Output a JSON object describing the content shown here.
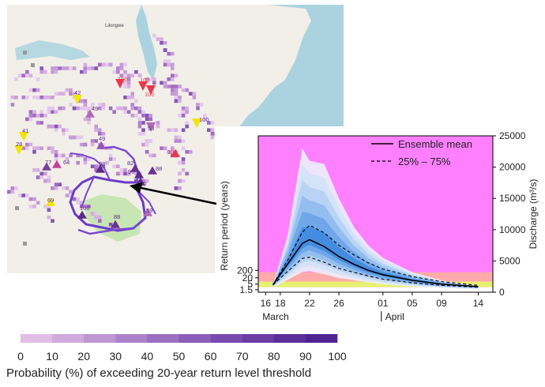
{
  "map": {
    "place_labels": [
      "Lilongwe"
    ],
    "markers": [
      {
        "value": "100",
        "shape": "triangle-down",
        "color": "#e8384d",
        "level": 100
      },
      {
        "value": "100",
        "shape": "triangle-down",
        "color": "#e8384d",
        "level": 100
      },
      {
        "value": "100",
        "shape": "triangle-down",
        "color": "#e8384d",
        "level": 100
      },
      {
        "value": "42",
        "shape": "triangle-down",
        "color": "#f2e600",
        "level": 42
      },
      {
        "value": "49",
        "shape": "triangle-up",
        "color": "#b06ab5",
        "level": 49
      },
      {
        "value": "53",
        "shape": "triangle-down",
        "color": "#b06ab5",
        "level": 53
      },
      {
        "value": "100",
        "shape": "triangle-down",
        "color": "#f2e600",
        "level": 100
      },
      {
        "value": "41",
        "shape": "triangle-down",
        "color": "#f2e600",
        "level": 41
      },
      {
        "value": "28",
        "shape": "triangle-down",
        "color": "#f2e600",
        "level": 28
      },
      {
        "value": "49",
        "shape": "triangle-up",
        "color": "#9a55b0",
        "level": 49
      },
      {
        "value": "100",
        "shape": "triangle-up",
        "color": "#e8384d",
        "level": 100
      },
      {
        "value": "64",
        "shape": "triangle-up",
        "color": "#c2409b",
        "level": 64
      },
      {
        "value": "77",
        "shape": "triangle-up",
        "color": "#7a3fa0",
        "level": 77
      },
      {
        "value": "98",
        "shape": "triangle-up",
        "color": "#5a2d88",
        "level": 98
      },
      {
        "value": "82",
        "shape": "triangle-up",
        "color": "#6a3290",
        "level": 82
      },
      {
        "value": "96",
        "shape": "triangle-up",
        "color": "#5a2d88",
        "level": 96
      },
      {
        "value": "88",
        "shape": "triangle-up",
        "color": "#6a3290",
        "level": 88
      },
      {
        "value": "100",
        "shape": "triangle-up",
        "color": "#5a2d88",
        "level": 100
      },
      {
        "value": "69",
        "shape": "triangle-up",
        "color": "#f2e600",
        "level": 69
      },
      {
        "value": "100",
        "shape": "triangle-up",
        "color": "#5a2d88",
        "level": 100
      },
      {
        "value": "88",
        "shape": "triangle-up",
        "color": "#6a3290",
        "level": 88
      },
      {
        "value": "59",
        "shape": "triangle-up",
        "color": "#b06ab5",
        "level": 59
      }
    ],
    "colors": {
      "land": "#f2efe9",
      "sea": "#aad3df",
      "lake": "#aad3df",
      "park": "#c8e6b4",
      "river": "#6a3cc8"
    }
  },
  "chart_data": {
    "type": "line",
    "title": "",
    "ylabel_left": "Return period (years)",
    "ylabel_right": "Discharge (m³/s)",
    "x_ticks": [
      "16",
      "18",
      "22",
      "26",
      "01",
      "05",
      "09",
      "14"
    ],
    "x_month_labels": [
      "March",
      "April"
    ],
    "y_right_ticks": [
      "0",
      "5000",
      "10000",
      "15000",
      "20000",
      "25000"
    ],
    "y_left_ticks": [
      "1.5",
      "5",
      "20",
      "200"
    ],
    "ylim": [
      0,
      25000
    ],
    "legend": [
      "Ensemble mean",
      "25% – 75%"
    ],
    "legend_position": "top-right",
    "threshold_bands": [
      {
        "label": "200",
        "color": "#ff80ff"
      },
      {
        "label": "20",
        "color": "#ffaaaa"
      },
      {
        "label": "5",
        "color": "#e8f070"
      },
      {
        "label": "1.5",
        "color": "#ffffff"
      }
    ],
    "x_dates": [
      "2019-03-17",
      "2019-03-19",
      "2019-03-21",
      "2019-03-22",
      "2019-03-24",
      "2019-03-26",
      "2019-03-28",
      "2019-03-30",
      "2019-04-01",
      "2019-04-05",
      "2019-04-09",
      "2019-04-14"
    ],
    "series": [
      {
        "name": "Ensemble mean",
        "values": [
          1200,
          4500,
          7800,
          8400,
          7300,
          5700,
          4500,
          3500,
          2800,
          1900,
          1300,
          900
        ]
      },
      {
        "name": "25% – 75%",
        "values": [
          1200,
          5100,
          9600,
          10700,
          9500,
          7500,
          6000,
          4700,
          3700,
          2500,
          1700,
          1100
        ]
      },
      {
        "name": "25% – 75%",
        "values": [
          1200,
          3300,
          5400,
          5600,
          4800,
          3800,
          3200,
          2600,
          2100,
          1500,
          1100,
          800
        ]
      }
    ],
    "envelope_max": [
      1200,
      9000,
      23000,
      21000,
      20500,
      15000,
      10500,
      7500,
      5500,
      3200,
      1900,
      1000
    ]
  },
  "legend": {
    "ticks": [
      "0",
      "10",
      "20",
      "30",
      "40",
      "50",
      "60",
      "70",
      "80",
      "90",
      "100"
    ],
    "title": "Probability (%) of exceeding 20-year return level threshold",
    "colors": [
      "#e1bde6",
      "#d0a9dd",
      "#bf95d4",
      "#ad82cb",
      "#9c6fc1",
      "#8a5db8",
      "#794bae",
      "#6a3ca4",
      "#5b2f9a",
      "#4e2490"
    ]
  }
}
